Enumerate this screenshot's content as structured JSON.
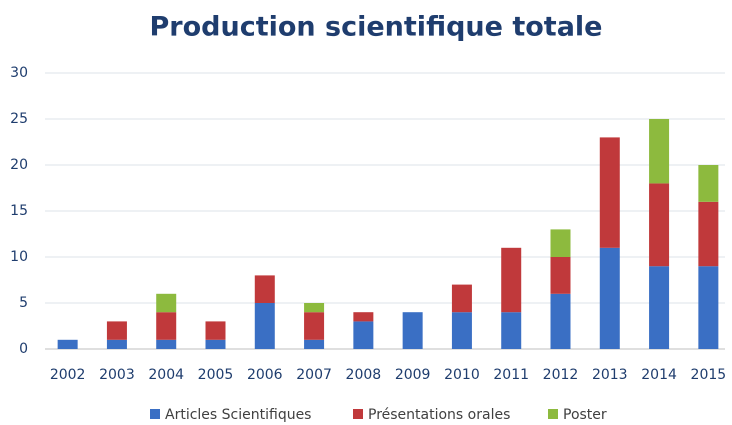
{
  "chart_data": {
    "type": "stacked_bar",
    "title": "Production scientifique totale",
    "categories": [
      "2002",
      "2003",
      "2004",
      "2005",
      "2006",
      "2007",
      "2008",
      "2009",
      "2010",
      "2011",
      "2012",
      "2013",
      "2014",
      "2015"
    ],
    "series": [
      {
        "name": "Articles Scientifiques",
        "color": "#3a6fc4",
        "values": [
          1,
          1,
          1,
          1,
          5,
          1,
          3,
          4,
          4,
          4,
          6,
          11,
          9,
          9
        ]
      },
      {
        "name": "Présentations orales",
        "color": "#c0393b",
        "values": [
          0,
          2,
          3,
          2,
          3,
          3,
          1,
          0,
          3,
          7,
          4,
          12,
          9,
          7
        ]
      },
      {
        "name": "Poster",
        "color": "#8dba3e",
        "values": [
          0,
          0,
          2,
          0,
          0,
          1,
          0,
          0,
          0,
          0,
          3,
          0,
          7,
          4
        ]
      }
    ],
    "ylim": [
      0,
      30
    ],
    "yticks": [
      0,
      5,
      10,
      15,
      20,
      25,
      30
    ],
    "grid": true,
    "legend": "bottom"
  }
}
